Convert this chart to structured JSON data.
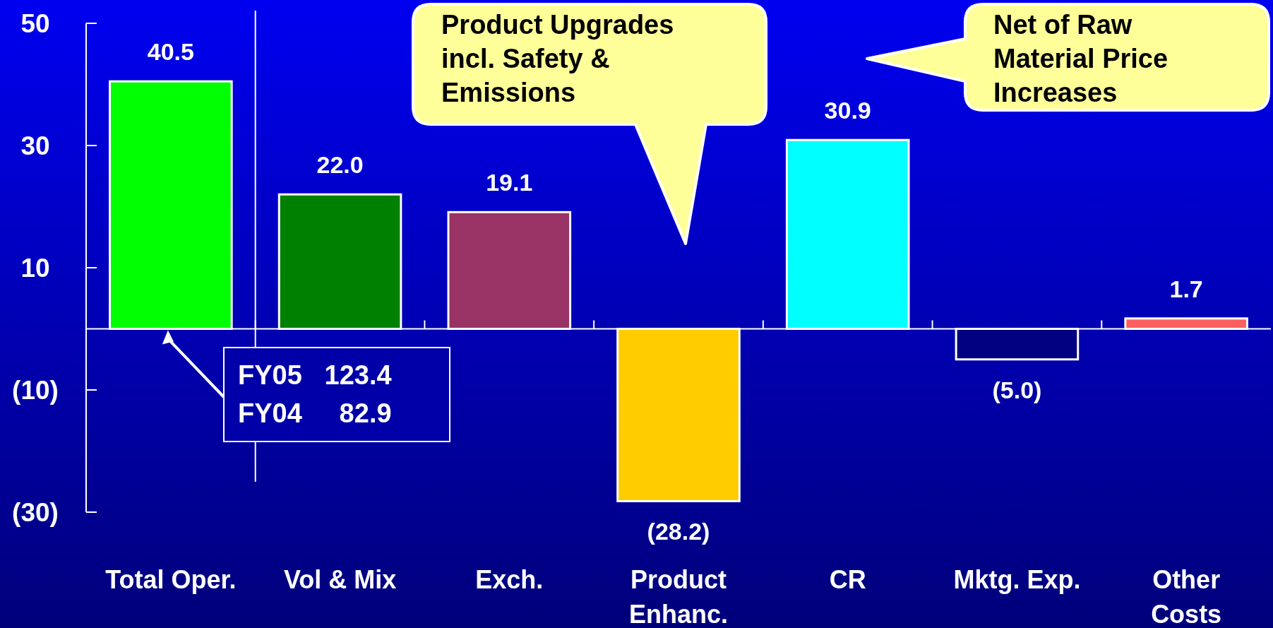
{
  "chart_data": {
    "type": "bar",
    "categories": [
      "Total Oper.",
      "Vol & Mix",
      "Exch.",
      "Product\nEnhanc.",
      "CR",
      "Mktg. Exp.",
      "Other\nCosts"
    ],
    "values": [
      40.5,
      22.0,
      19.1,
      -28.2,
      30.9,
      -5.0,
      1.7
    ],
    "colors": [
      "#00ff00",
      "#008000",
      "#993366",
      "#ffcc00",
      "#00ffff",
      "#000080",
      "#ff5f5f"
    ],
    "value_labels": [
      "40.5",
      "22.0",
      "19.1",
      "(28.2)",
      "30.9",
      "(5.0)",
      "1.7"
    ],
    "ylim": [
      -30,
      50
    ],
    "yticks": [
      50,
      30,
      10,
      {
        "value": -10,
        "label": "(10)"
      },
      {
        "value": -30,
        "label": "(30)"
      }
    ],
    "grid": false,
    "annotations": [
      {
        "text": "FY05   123.4\nFY04     82.9",
        "x": "Total Oper.",
        "y": 0
      },
      "Product Upgrades\nincl. Safety &\nEmissions",
      "Net of Raw\nMaterial Price\nIncreases"
    ]
  }
}
